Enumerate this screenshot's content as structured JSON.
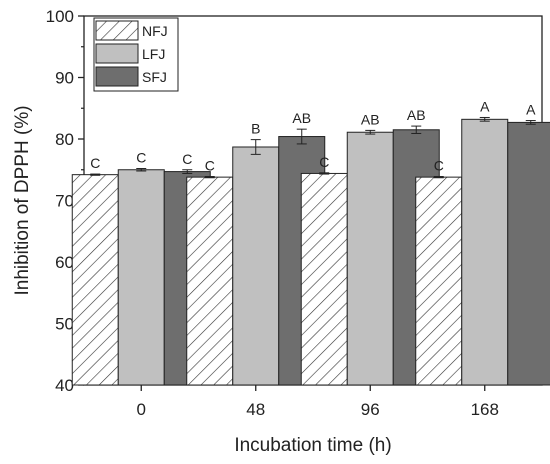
{
  "chart_data": {
    "type": "bar",
    "categories": [
      "0",
      "48",
      "96",
      "168"
    ],
    "xlabel": "Incubation time (h)",
    "ylabel": "Inhibition of DPPH (%)",
    "ylim": [
      40,
      100
    ],
    "yticks": [
      40,
      50,
      60,
      70,
      80,
      90,
      100
    ],
    "legend_position": "top-left",
    "grid": false,
    "series": [
      {
        "name": "NFJ",
        "pattern": "diagonal-hatch",
        "color": "#ffffff",
        "values": [
          74.2,
          73.8,
          74.4,
          73.8
        ],
        "errors": [
          0.1,
          0.1,
          0.1,
          0.1
        ],
        "labels": [
          "C",
          "C",
          "C",
          "C"
        ]
      },
      {
        "name": "LFJ",
        "pattern": "solid",
        "color": "#c0c0c0",
        "values": [
          75.0,
          78.7,
          81.1,
          83.2
        ],
        "errors": [
          0.2,
          1.2,
          0.3,
          0.3
        ],
        "labels": [
          "C",
          "B",
          "AB",
          "A"
        ]
      },
      {
        "name": "SFJ",
        "pattern": "solid",
        "color": "#6e6e6e",
        "values": [
          74.7,
          80.4,
          81.5,
          82.7
        ],
        "errors": [
          0.3,
          1.2,
          0.6,
          0.3
        ],
        "labels": [
          "C",
          "AB",
          "AB",
          "A"
        ]
      }
    ]
  }
}
